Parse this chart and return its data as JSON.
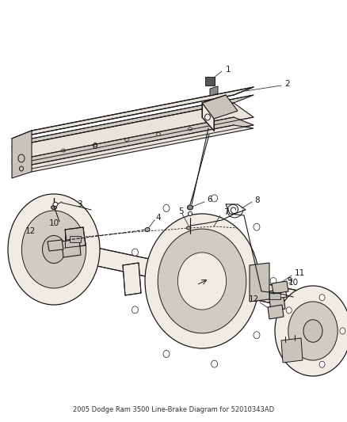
{
  "title": "2005 Dodge Ram 3500 Line-Brake Diagram for 52010343AD",
  "bg_color": "#ffffff",
  "line_color": "#1a1a1a",
  "fig_width": 4.38,
  "fig_height": 5.33,
  "dpi": 100,
  "frame_color": "#e8e4dc",
  "frame_shadow": "#d0ccc4",
  "part_color": "#f0ece4",
  "part_shadow": "#c8c4bc"
}
